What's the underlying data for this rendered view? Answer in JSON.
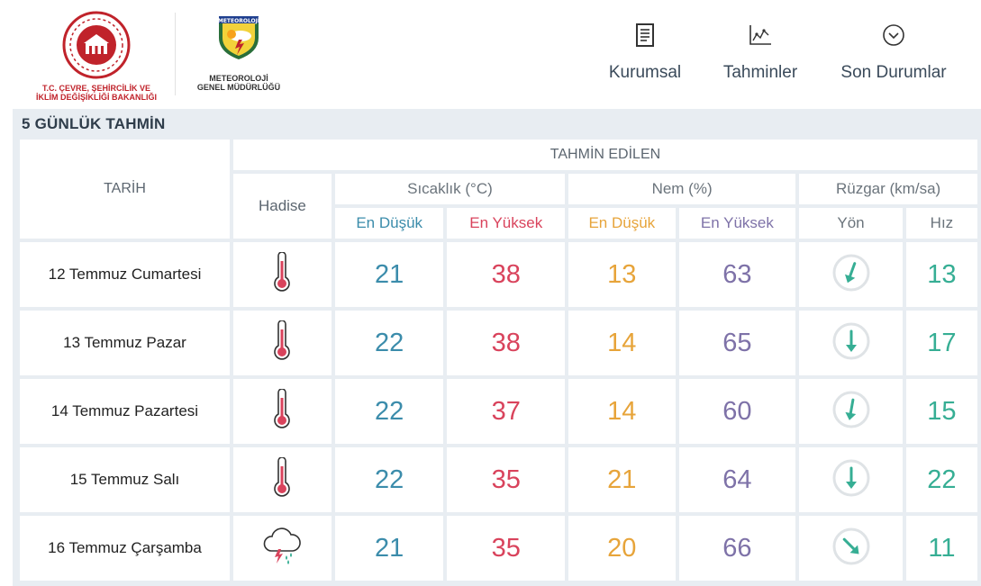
{
  "header": {
    "ministry_logo_text": "T.C. ÇEVRE, ŞEHİRCİLİK VE İKLİM DEĞİŞİKLİĞİ BAKANLIĞI",
    "ministry_line1": "T.C. ÇEVRE, ŞEHİRCİLİK VE",
    "ministry_line2": "İKLİM DEĞİŞİKLİĞİ BAKANLIĞI",
    "mgm_badge": "METEOROLOJİ",
    "mgm_line1": "METEOROLOJİ",
    "mgm_line2": "GENEL MÜDÜRLÜĞÜ",
    "nav": [
      {
        "label": "Kurumsal",
        "icon": "document-icon"
      },
      {
        "label": "Tahminler",
        "icon": "chart-icon"
      },
      {
        "label": "Son Durumlar",
        "icon": "chevron-circle-icon"
      }
    ]
  },
  "section_title": "5 GÜNLÜK TAHMİN",
  "table": {
    "tarih": "TARİH",
    "tahmin_edilen": "TAHMİN EDİLEN",
    "hadise": "Hadise",
    "sicaklik": "Sıcaklık (°C)",
    "nem": "Nem (%)",
    "ruzgar": "Rüzgar (km/sa)",
    "en_dusuk": "En Düşük",
    "en_yuksek": "En Yüksek",
    "yon": "Yön",
    "hiz": "Hız",
    "colors": {
      "low_temp": "#3b8cab",
      "high_temp": "#d9435c",
      "low_hum": "#e7a43a",
      "high_hum": "#7e72a8",
      "speed": "#36ae94"
    },
    "rows": [
      {
        "date": "12 Temmuz Cumartesi",
        "icon": "thermometer-hot-icon",
        "temp_low": "21",
        "temp_high": "38",
        "hum_low": "13",
        "hum_high": "63",
        "wind_dir_deg": 200,
        "wind_speed": "13"
      },
      {
        "date": "13 Temmuz Pazar",
        "icon": "thermometer-hot-icon",
        "temp_low": "22",
        "temp_high": "38",
        "hum_low": "14",
        "hum_high": "65",
        "wind_dir_deg": 180,
        "wind_speed": "17"
      },
      {
        "date": "14 Temmuz Pazartesi",
        "icon": "thermometer-hot-icon",
        "temp_low": "22",
        "temp_high": "37",
        "hum_low": "14",
        "hum_high": "60",
        "wind_dir_deg": 190,
        "wind_speed": "15"
      },
      {
        "date": "15 Temmuz Salı",
        "icon": "thermometer-hot-icon",
        "temp_low": "22",
        "temp_high": "35",
        "hum_low": "21",
        "hum_high": "64",
        "wind_dir_deg": 180,
        "wind_speed": "22"
      },
      {
        "date": "16 Temmuz Çarşamba",
        "icon": "thunderstorm-rain-icon",
        "temp_low": "21",
        "temp_high": "35",
        "hum_low": "20",
        "hum_high": "66",
        "wind_dir_deg": 135,
        "wind_speed": "11"
      }
    ]
  }
}
